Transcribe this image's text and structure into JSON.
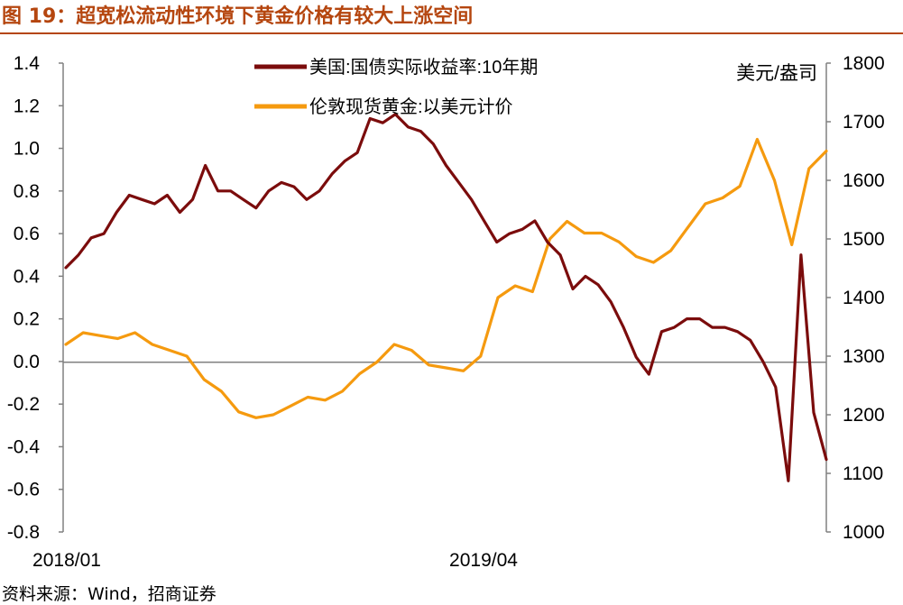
{
  "figure": {
    "title": "图 19：超宽松流动性环境下黄金价格有较大上涨空间",
    "source": "资料来源：Wind，招商证券"
  },
  "chart_data": {
    "type": "line",
    "x_tick_labels": [
      "2018/01",
      "2019/04"
    ],
    "x_range": [
      "2018-01",
      "2020-04"
    ],
    "left_axis": {
      "ylim": [
        -0.8,
        1.4
      ],
      "ticks": [
        "1.4",
        "1.2",
        "1.0",
        "0.8",
        "0.6",
        "0.4",
        "0.2",
        "0.0",
        "-0.2",
        "-0.4",
        "-0.6",
        "-0.8"
      ],
      "ylabel": ""
    },
    "right_axis": {
      "ylim": [
        1000,
        1800
      ],
      "ticks": [
        "1800",
        "1700",
        "1600",
        "1500",
        "1400",
        "1300",
        "1200",
        "1100",
        "1000"
      ],
      "unit_label": "美元/盎司"
    },
    "grid": false,
    "legend_position": "top-center",
    "series": [
      {
        "name": "美国:国债实际收益率:10年期",
        "axis": "left",
        "color": "#7b0c0c",
        "values": [
          0.44,
          0.5,
          0.58,
          0.6,
          0.7,
          0.78,
          0.76,
          0.74,
          0.78,
          0.7,
          0.76,
          0.92,
          0.8,
          0.8,
          0.76,
          0.72,
          0.8,
          0.84,
          0.82,
          0.76,
          0.8,
          0.88,
          0.94,
          0.98,
          1.14,
          1.12,
          1.16,
          1.1,
          1.08,
          1.02,
          0.92,
          0.84,
          0.76,
          0.66,
          0.56,
          0.6,
          0.62,
          0.66,
          0.56,
          0.5,
          0.34,
          0.4,
          0.36,
          0.28,
          0.16,
          0.02,
          -0.06,
          0.14,
          0.16,
          0.2,
          0.2,
          0.16,
          0.16,
          0.14,
          0.1,
          0.0,
          -0.12,
          -0.56,
          0.5,
          -0.24,
          -0.46
        ]
      },
      {
        "name": "伦敦现货黄金:以美元计价",
        "axis": "right",
        "color": "#f59a0f",
        "values": [
          1320,
          1340,
          1335,
          1330,
          1340,
          1320,
          1310,
          1300,
          1260,
          1240,
          1205,
          1195,
          1200,
          1215,
          1230,
          1225,
          1240,
          1270,
          1290,
          1320,
          1310,
          1285,
          1280,
          1275,
          1300,
          1400,
          1420,
          1410,
          1500,
          1530,
          1510,
          1510,
          1495,
          1470,
          1460,
          1480,
          1520,
          1560,
          1570,
          1590,
          1670,
          1600,
          1490,
          1620,
          1650
        ]
      }
    ]
  }
}
